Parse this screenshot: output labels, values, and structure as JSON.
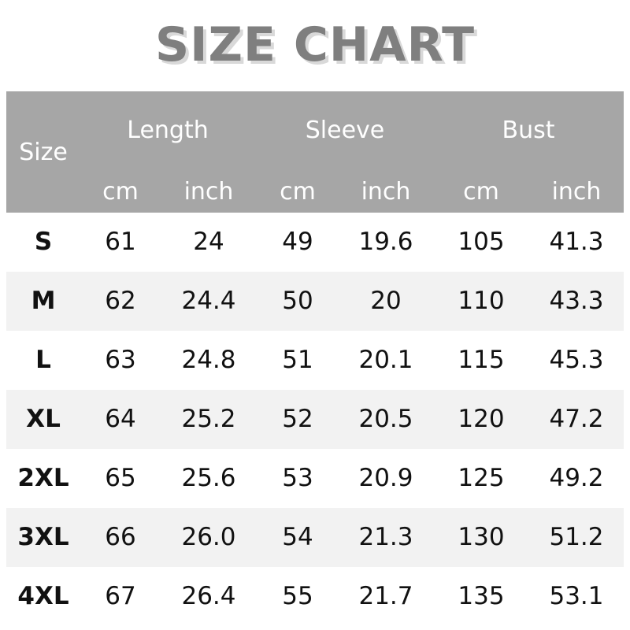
{
  "title": "SIZE CHART",
  "header": {
    "size": "Size",
    "groups": [
      "Length",
      "Sleeve",
      "Bust"
    ],
    "units": [
      "cm",
      "inch",
      "cm",
      "inch",
      "cm",
      "inch"
    ]
  },
  "colors": {
    "header_bg": "#a6a6a6",
    "stripe": "#f2f2f2",
    "title": "#7f7f7f"
  },
  "rows": [
    [
      "S",
      "61",
      "24",
      "49",
      "19.6",
      "105",
      "41.3"
    ],
    [
      "M",
      "62",
      "24.4",
      "50",
      "20",
      "110",
      "43.3"
    ],
    [
      "L",
      "63",
      "24.8",
      "51",
      "20.1",
      "115",
      "45.3"
    ],
    [
      "XL",
      "64",
      "25.2",
      "52",
      "20.5",
      "120",
      "47.2"
    ],
    [
      "2XL",
      "65",
      "25.6",
      "53",
      "20.9",
      "125",
      "49.2"
    ],
    [
      "3XL",
      "66",
      "26.0",
      "54",
      "21.3",
      "130",
      "51.2"
    ],
    [
      "4XL",
      "67",
      "26.4",
      "55",
      "21.7",
      "135",
      "53.1"
    ]
  ]
}
